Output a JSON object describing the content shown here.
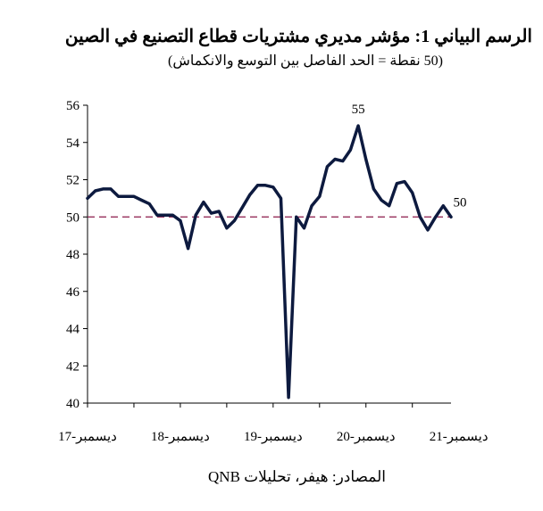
{
  "title": "الرسم البياني 1: مؤشر مديري مشتريات قطاع التصنيع في الصين",
  "subtitle": "(50 نقطة = الحد الفاصل بين التوسع والانكماش)",
  "source": "المصادر: هيفر، تحليلات QNB",
  "chart_data": {
    "type": "line",
    "title": "الرسم البياني 1: مؤشر مديري مشتريات قطاع التصنيع في الصين",
    "subtitle": "(50 نقطة = الحد الفاصل بين التوسع والانكماش)",
    "xlabel": "",
    "ylabel": "",
    "ylim": [
      40,
      56
    ],
    "yticks": [
      40,
      42,
      44,
      46,
      48,
      50,
      52,
      54,
      56
    ],
    "x_tick_labels": [
      "ديسمبر-17",
      "ديسمبر-18",
      "ديسمبر-19",
      "ديسمبر-20",
      "ديسمبر-21"
    ],
    "x_tick_indices": [
      0,
      12,
      24,
      36,
      48
    ],
    "reference_line": {
      "value": 50,
      "style": "dashed",
      "color": "#8b1a4a"
    },
    "annotations": [
      {
        "text": "55",
        "index": 35
      },
      {
        "text": "50",
        "index": 47
      }
    ],
    "line_color": "#0d1a3f",
    "grid": false,
    "series": [
      {
        "values": [
          51.0,
          51.4,
          51.5,
          51.5,
          51.1,
          51.1,
          51.1,
          50.9,
          50.7,
          50.1,
          50.1,
          50.1,
          49.8,
          48.3,
          50.1,
          50.8,
          50.2,
          50.3,
          49.4,
          49.8,
          50.5,
          51.2,
          51.7,
          51.7,
          51.6,
          51.0,
          40.3,
          50.0,
          49.4,
          50.6,
          51.1,
          52.7,
          53.1,
          53.0,
          53.6,
          54.9,
          53.1,
          51.5,
          50.9,
          50.6,
          51.8,
          51.9,
          51.3,
          50.0,
          49.3,
          50.0,
          50.6,
          50.0
        ]
      }
    ]
  }
}
